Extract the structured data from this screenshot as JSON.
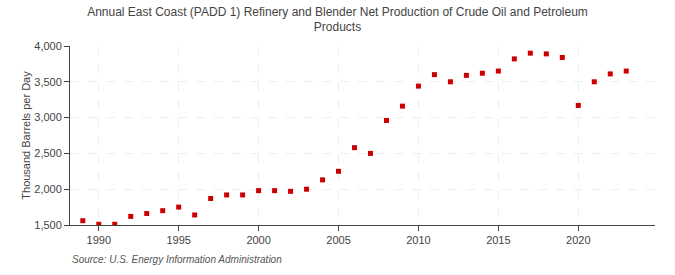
{
  "chart_data": {
    "type": "scatter",
    "title": "Annual East Coast (PADD 1) Refinery and Blender Net Production of Crude Oil and Petroleum\nProducts",
    "y_label": "Thousand Barrels per Day",
    "source": "Source: U.S. Energy Information Administration",
    "x": [
      1989,
      1990,
      1991,
      1992,
      1993,
      1994,
      1995,
      1996,
      1997,
      1998,
      1999,
      2000,
      2001,
      2002,
      2003,
      2004,
      2005,
      2006,
      2007,
      2008,
      2009,
      2010,
      2011,
      2012,
      2013,
      2014,
      2015,
      2016,
      2017,
      2018,
      2019,
      2020,
      2021,
      2022,
      2023
    ],
    "values": [
      1560,
      1510,
      1510,
      1620,
      1660,
      1700,
      1750,
      1640,
      1870,
      1920,
      1920,
      1980,
      1980,
      1970,
      2000,
      2130,
      2250,
      2580,
      2500,
      2960,
      3160,
      3440,
      3600,
      3500,
      3590,
      3620,
      3650,
      3820,
      3900,
      3890,
      3840,
      3170,
      3500,
      3610,
      3650
    ],
    "color": "#cc0000",
    "marker": "square",
    "xlim": [
      1988.2,
      2024.8
    ],
    "xticks": [
      1990,
      1995,
      2000,
      2005,
      2010,
      2015,
      2020
    ],
    "ylim": [
      1500,
      4000
    ],
    "yticks": [
      {
        "value": 1500,
        "label": "1,500"
      },
      {
        "value": 2000,
        "label": "2,000"
      },
      {
        "value": 2500,
        "label": "2,500"
      },
      {
        "value": 3000,
        "label": "3,000"
      },
      {
        "value": 3500,
        "label": "3,500"
      },
      {
        "value": 4000,
        "label": "4,000"
      }
    ],
    "grid": true
  }
}
